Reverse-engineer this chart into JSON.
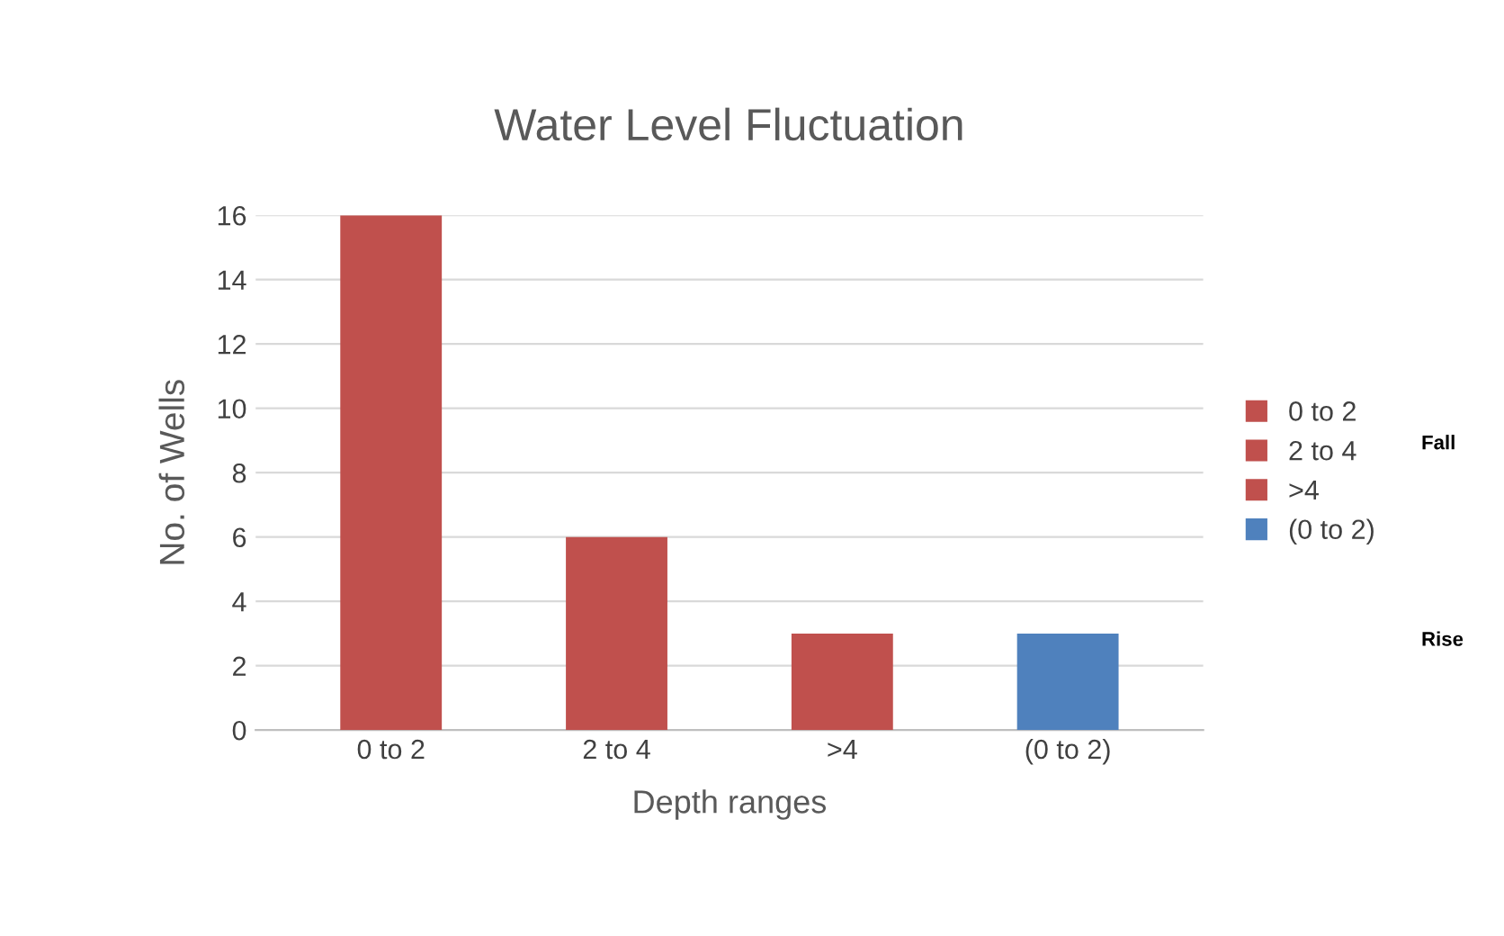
{
  "chart_data": {
    "type": "bar",
    "title": "Water Level Fluctuation",
    "xlabel": "Depth ranges",
    "ylabel": "No. of Wells",
    "categories": [
      "0 to 2",
      "2 to 4",
      ">4",
      "(0 to 2)"
    ],
    "series": [
      {
        "name": "0 to 2",
        "color": "#c0504d",
        "values": [
          16,
          null,
          null,
          null
        ]
      },
      {
        "name": "2 to 4",
        "color": "#c0504d",
        "values": [
          null,
          6,
          null,
          null
        ]
      },
      {
        "name": ">4",
        "color": "#c0504d",
        "values": [
          null,
          null,
          3,
          null
        ]
      },
      {
        "name": "(0 to 2)",
        "color": "#4f81bd",
        "values": [
          null,
          null,
          null,
          3
        ]
      }
    ],
    "ylim": [
      0,
      16
    ],
    "yticks": [
      0,
      2,
      4,
      6,
      8,
      10,
      12,
      14,
      16
    ],
    "grid": "y",
    "legend": "right",
    "annotations": [
      "Fall",
      "Rise"
    ]
  }
}
